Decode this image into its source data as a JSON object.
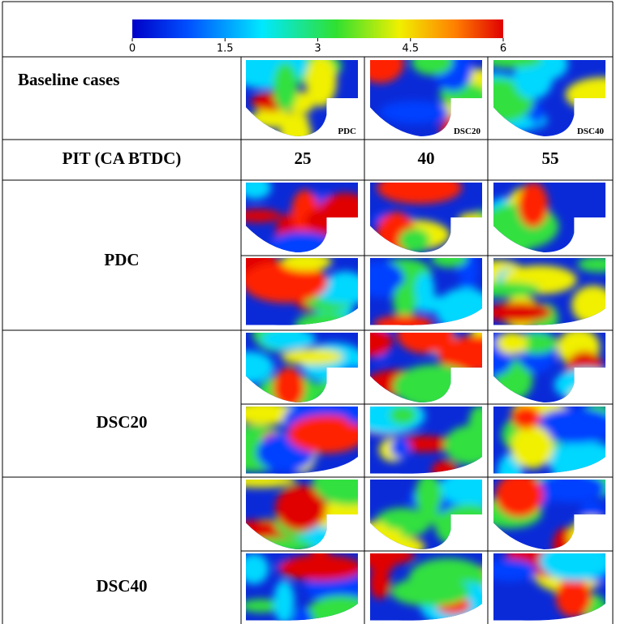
{
  "colorbar": {
    "lim": [
      0,
      6
    ],
    "ticks": [
      0,
      1.5,
      3,
      4.5,
      6
    ]
  },
  "table": {
    "baseline": {
      "label": "Baseline cases",
      "images": [
        "PDC",
        "DSC20",
        "DSC40"
      ]
    },
    "pit": {
      "label": "PIT (CA BTDC)",
      "values": [
        25,
        40,
        55
      ]
    },
    "groups": [
      "PDC",
      "DSC20",
      "DSC40"
    ]
  }
}
